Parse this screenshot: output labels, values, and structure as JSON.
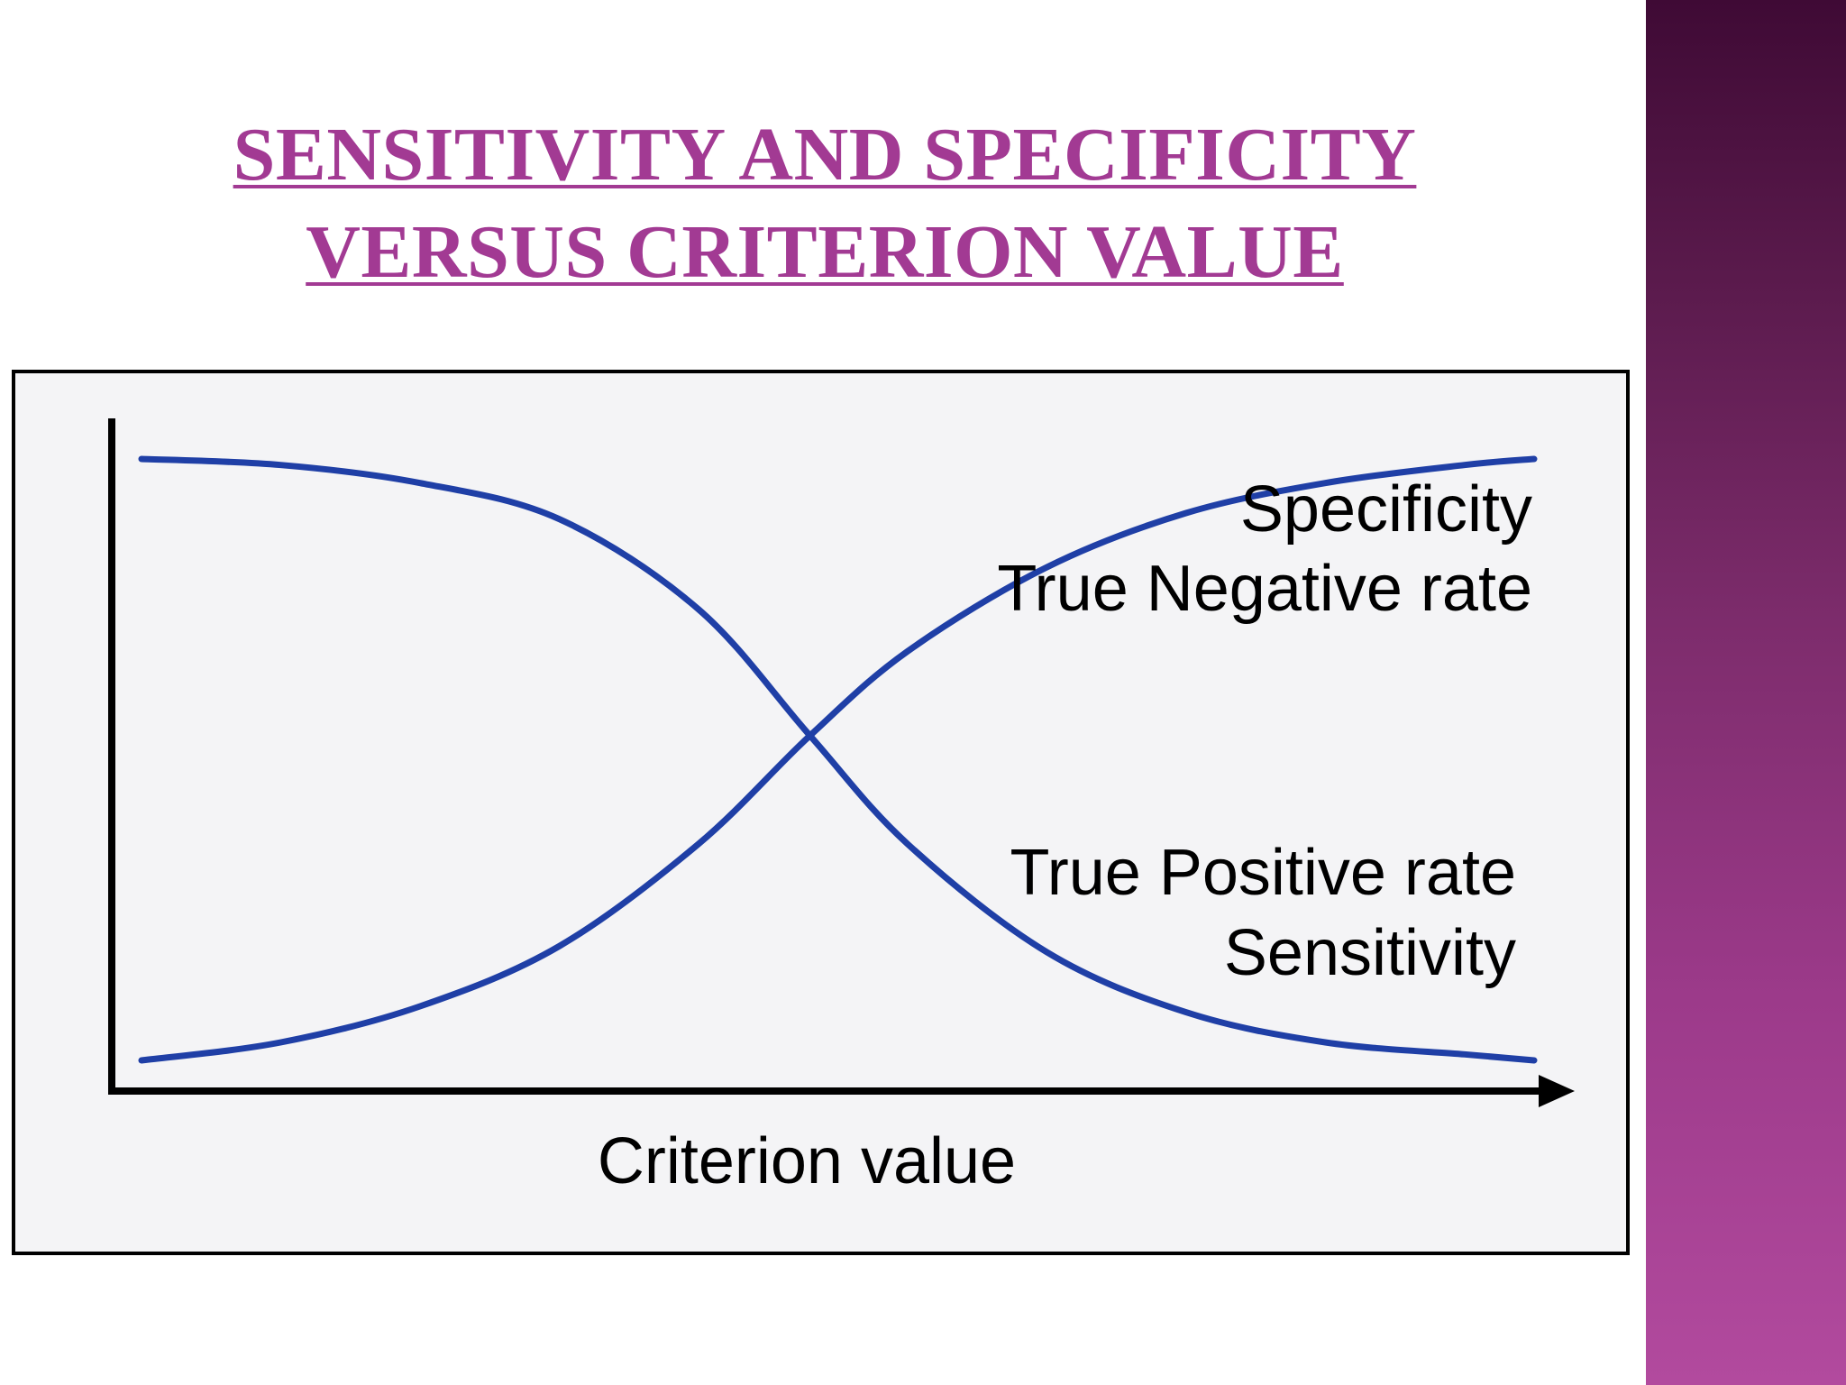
{
  "slide": {
    "title_line1": "SENSITIVITY AND SPECIFICITY",
    "title_line2": "VERSUS CRITERION VALUE",
    "colors": {
      "title": "#a23a93",
      "sidebar_top": "#3f0a35",
      "sidebar_bottom": "#b24a9e",
      "curve": "#1f3fa6"
    }
  },
  "chart_data": {
    "type": "line",
    "title": "SENSITIVITY AND SPECIFICITY VERSUS CRITERION VALUE",
    "xlabel": "Criterion value",
    "ylabel": "",
    "xlim": [
      0,
      1
    ],
    "ylim": [
      0,
      1
    ],
    "grid": false,
    "x_ticks_shown": false,
    "y_ticks_shown": false,
    "series": [
      {
        "name": "Specificity / True Negative rate",
        "label_line1": "Specificity",
        "label_line2": "True Negative rate",
        "x": [
          0.0,
          0.1,
          0.2,
          0.3,
          0.4,
          0.48,
          0.55,
          0.65,
          0.75,
          0.85,
          0.95,
          1.0
        ],
        "y": [
          0.0,
          0.03,
          0.09,
          0.19,
          0.36,
          0.54,
          0.68,
          0.82,
          0.91,
          0.96,
          0.99,
          1.0
        ]
      },
      {
        "name": "True Positive rate / Sensitivity",
        "label_line1": "True Positive rate",
        "label_line2": "Sensitivity",
        "x": [
          0.0,
          0.1,
          0.2,
          0.3,
          0.4,
          0.48,
          0.55,
          0.65,
          0.75,
          0.85,
          0.95,
          1.0
        ],
        "y": [
          1.0,
          0.99,
          0.96,
          0.9,
          0.75,
          0.54,
          0.36,
          0.18,
          0.08,
          0.03,
          0.01,
          0.0
        ]
      }
    ]
  }
}
